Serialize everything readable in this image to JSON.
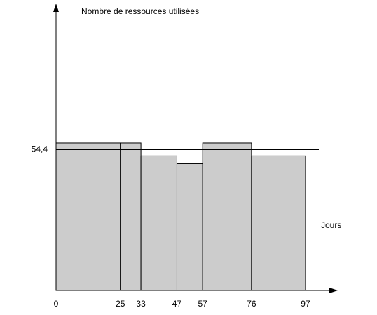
{
  "chart_data": {
    "type": "histogram",
    "ylabel": "Nombre de ressources utilisées",
    "xlabel": "Jours",
    "bins": [
      0,
      25,
      33,
      47,
      57,
      76,
      97
    ],
    "values": [
      57,
      57,
      52,
      49,
      57,
      52
    ],
    "color": "#cccccc",
    "xlim": [
      0,
      109
    ],
    "ylim": [
      0,
      111
    ],
    "xticks": [
      0,
      25,
      33,
      47,
      57,
      76,
      97
    ],
    "yticks": [
      {
        "value": 54.4,
        "label": "54,4"
      }
    ],
    "grid": true
  }
}
